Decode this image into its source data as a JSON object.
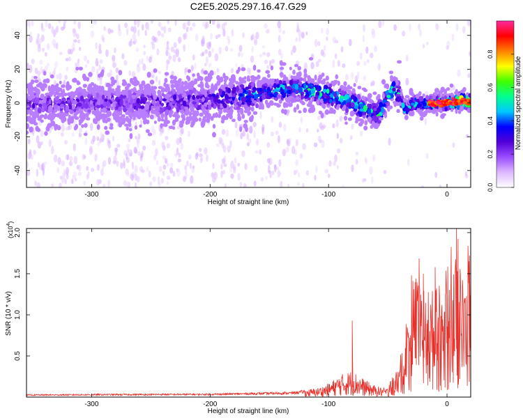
{
  "title": "C2E5.2025.297.16.47.G29",
  "colors": {
    "snr_line": "#e8302a",
    "frame": "#000000",
    "spectrum_background": "#ffffff"
  },
  "chart_data": [
    {
      "type": "heatmap",
      "xlabel": "Height of straight line (km)",
      "ylabel": "Frequency (Hz)",
      "xlim": [
        -355,
        20
      ],
      "ylim": [
        -50,
        49
      ],
      "x_ticks": [
        -300,
        -200,
        -100,
        0
      ],
      "y_ticks": [
        -40,
        -20,
        0,
        20,
        40
      ],
      "colorbar": {
        "label": "Normalized spectral amplitude",
        "range": [
          0,
          1
        ],
        "ticks": [
          "0.0",
          "0.2",
          "0.4",
          "0.6",
          "0.8"
        ],
        "colormap": [
          "#ffffff",
          "#ddb8ff",
          "#9a4dff",
          "#5200d8",
          "#0000ff",
          "#00c8ff",
          "#00ff90",
          "#40ff00",
          "#ffff00",
          "#ff8000",
          "#ff0000",
          "#ff2aa0"
        ]
      },
      "ridge": {
        "description_points_x": [
          -355,
          -300,
          -250,
          -200,
          -160,
          -140,
          -120,
          -100,
          -80,
          -60,
          -55,
          -50,
          -45,
          -40,
          -35,
          -30,
          -25,
          -20,
          -10,
          0,
          10,
          20
        ],
        "description_points_y": [
          0,
          0,
          0,
          2,
          5,
          8,
          8,
          5,
          0,
          -7,
          -4,
          5,
          8,
          5,
          -5,
          -1,
          0,
          0,
          0,
          0,
          1,
          1
        ],
        "peak_amplitude_x": [
          -350,
          -300,
          -200,
          -150,
          -100,
          -80,
          -60,
          -40,
          -20,
          0,
          10,
          20
        ],
        "peak_amplitude_y": [
          0.25,
          0.25,
          0.3,
          0.45,
          0.55,
          0.5,
          0.55,
          0.5,
          0.55,
          0.85,
          0.95,
          0.9
        ]
      }
    },
    {
      "type": "line",
      "xlabel": "Height of straight line (km)",
      "ylabel": "SNR (10 * v/v)",
      "y_multiplier": "(x10",
      "y_multiplier_exp": "4",
      "y_multiplier_close": ")",
      "xlim": [
        -355,
        20
      ],
      "ylim": [
        0,
        2.05
      ],
      "x_ticks": [
        -300,
        -200,
        -100,
        0
      ],
      "y_ticks": [
        "0.5",
        "1.0",
        "1.5",
        "2.0"
      ],
      "y_tick_values": [
        0.5,
        1.0,
        1.5,
        2.0
      ],
      "envelope_x": [
        -355,
        -300,
        -200,
        -130,
        -110,
        -100,
        -90,
        -80,
        -70,
        -60,
        -50,
        -45,
        -40,
        -35,
        -30,
        -25,
        -20,
        -15,
        -10,
        -5,
        0,
        5,
        10,
        15,
        20
      ],
      "envelope_y": [
        0.03,
        0.035,
        0.04,
        0.06,
        0.1,
        0.15,
        0.25,
        0.3,
        0.2,
        0.12,
        0.1,
        0.2,
        0.35,
        0.7,
        1.0,
        1.3,
        1.2,
        1.1,
        1.3,
        1.0,
        1.2,
        1.5,
        1.45,
        1.3,
        1.55
      ],
      "spikes_x": [
        -80,
        -30,
        -27,
        -20,
        -10,
        8,
        19
      ],
      "spikes_y": [
        0.93,
        1.48,
        1.4,
        1.5,
        1.58,
        2.05,
        1.72
      ]
    }
  ]
}
